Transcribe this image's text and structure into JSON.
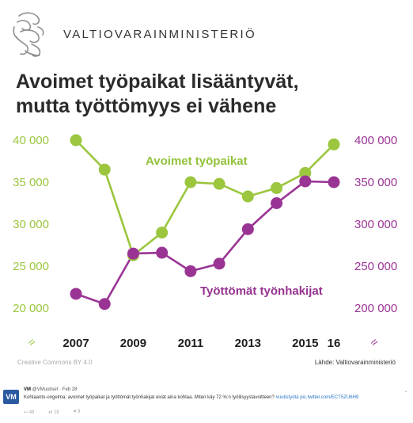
{
  "header": {
    "ministry": "VALTIOVARAINMINISTERIÖ",
    "logo_icon": "lion-coat-of-arms-icon"
  },
  "title": {
    "line1": "Avoimet työpaikat lisääntyvät,",
    "line2": "mutta työttömyys ei vähene"
  },
  "colors": {
    "green": "#9bc63e",
    "purple": "#9a3494"
  },
  "chart_data": {
    "type": "line",
    "title": "Avoimet työpaikat lisääntyvät, mutta työttömyys ei vähene",
    "x": [
      2007,
      2008,
      2009,
      2010,
      2011,
      2012,
      2013,
      2014,
      2015,
      2016
    ],
    "x_tick_labels": [
      "2007",
      "2009",
      "2011",
      "2013",
      "2015",
      "16"
    ],
    "series": [
      {
        "name": "Avoimet työpaikat",
        "axis": "left",
        "color": "#9bc63e",
        "values": [
          40000,
          36500,
          26300,
          29000,
          35000,
          34800,
          33300,
          34300,
          36100,
          39500
        ]
      },
      {
        "name": "Työttömät työnhakijat",
        "axis": "right",
        "color": "#9a3494",
        "values": [
          217000,
          205000,
          265000,
          266000,
          244000,
          253000,
          294000,
          325000,
          351000,
          350000
        ]
      }
    ],
    "y_left": {
      "ticks": [
        "40 000",
        "35 000",
        "30 000",
        "25 000",
        "20 000"
      ],
      "ylim": [
        20000,
        40000
      ]
    },
    "y_right": {
      "ticks": [
        "400 000",
        "350 000",
        "300 000",
        "250 000",
        "200 000"
      ],
      "ylim": [
        200000,
        400000
      ]
    },
    "axis_break_symbol": "≈",
    "grid": false,
    "legend": "inline labels"
  },
  "footer": {
    "license": "Creative Commons BY 4.0",
    "source": "Lähde: Valtiovarainministeriö"
  },
  "tweet": {
    "avatar": "VM",
    "name": "VM",
    "handle_date": "@VMuutiset · Feb 28",
    "text": "Kohtaanto-ongelma: avoimet työpaikat ja työttömät työnhakijat eivät aina kohtaa. Miten käy 72 %:n työllisyystavoitteen?",
    "hashtag": "#uutistyötä",
    "link": "pic.twitter.com/ECT5ZU6H9",
    "replies": "48",
    "retweets": "18",
    "likes": "9",
    "more": "⌄"
  }
}
